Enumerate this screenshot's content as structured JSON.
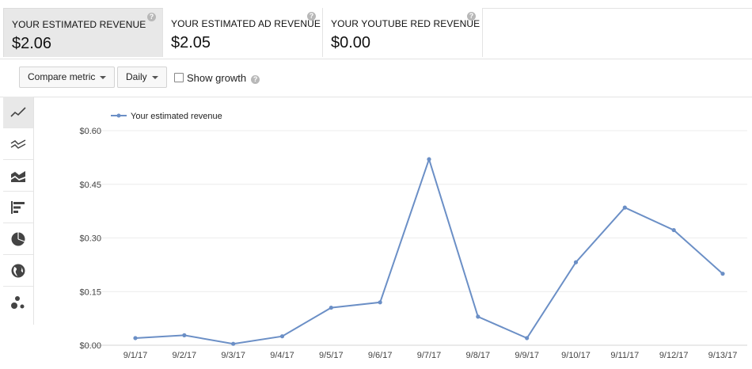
{
  "cards": [
    {
      "title": "YOUR ESTIMATED REVENUE",
      "value": "$2.06",
      "help": "?"
    },
    {
      "title": "YOUR ESTIMATED AD REVENUE",
      "value": "$2.05",
      "help": "?"
    },
    {
      "title": "YOUR YOUTUBE RED REVENUE",
      "value": "$0.00",
      "help": "?"
    }
  ],
  "toolbar": {
    "compare_label": "Compare metric",
    "interval_label": "Daily",
    "show_growth_label": "Show growth",
    "help": "?"
  },
  "sidebar": {
    "items": [
      {
        "icon": "line-chart-icon",
        "active": true
      },
      {
        "icon": "multi-line-chart-icon",
        "active": false
      },
      {
        "icon": "stacked-area-chart-icon",
        "active": false
      },
      {
        "icon": "bar-chart-icon",
        "active": false
      },
      {
        "icon": "pie-chart-icon",
        "active": false
      },
      {
        "icon": "globe-icon",
        "active": false
      },
      {
        "icon": "bubble-chart-icon",
        "active": false
      }
    ]
  },
  "colors": {
    "series": "#6b8fc6",
    "grid": "#ececec"
  },
  "chart_data": {
    "type": "line",
    "x": [
      "9/1/17",
      "9/2/17",
      "9/3/17",
      "9/4/17",
      "9/5/17",
      "9/6/17",
      "9/7/17",
      "9/8/17",
      "9/9/17",
      "9/10/17",
      "9/11/17",
      "9/12/17",
      "9/13/17"
    ],
    "series": [
      {
        "name": "Your estimated revenue",
        "values": [
          0.02,
          0.028,
          0.004,
          0.025,
          0.105,
          0.12,
          0.52,
          0.08,
          0.02,
          0.232,
          0.385,
          0.322,
          0.2
        ]
      }
    ],
    "y_ticks": [
      "$0.00",
      "$0.15",
      "$0.30",
      "$0.45",
      "$0.60"
    ],
    "y_tick_values": [
      0,
      0.15,
      0.3,
      0.45,
      0.6
    ],
    "ylim": [
      0,
      0.6
    ],
    "grid": true,
    "legend": "top-left"
  }
}
